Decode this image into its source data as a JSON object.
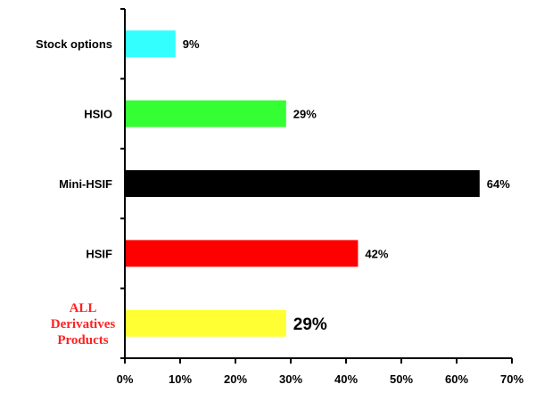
{
  "chart_data": {
    "type": "bar",
    "orientation": "horizontal",
    "categories": [
      "Stock options",
      "HSIO",
      "Mini-HSIF",
      "HSIF",
      "ALL Derivatives Products"
    ],
    "values": [
      9,
      29,
      64,
      42,
      29
    ],
    "value_labels": [
      "9%",
      "29%",
      "64%",
      "42%",
      "29%"
    ],
    "bar_colors": [
      "#33ffff",
      "#33ff33",
      "#000000",
      "#ff0000",
      "#ffff33"
    ],
    "highlight_color": "#ff2222",
    "highlight_category_lines": [
      "ALL",
      "Derivatives",
      "Products"
    ],
    "xlim": [
      0,
      70
    ],
    "x_ticks": [
      "0%",
      "10%",
      "20%",
      "30%",
      "40%",
      "50%",
      "60%",
      "70%"
    ],
    "grid": false,
    "legend": "none",
    "title": "",
    "xlabel": "",
    "ylabel": ""
  }
}
